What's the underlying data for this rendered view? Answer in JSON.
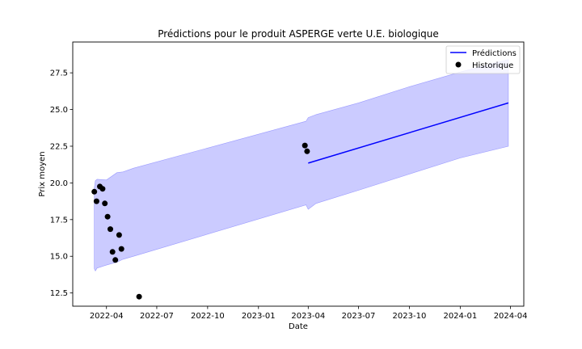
{
  "chart_data": {
    "type": "line",
    "title": "Prédictions pour le produit ASPERGE verte U.E. biologique",
    "xlabel": "Date",
    "ylabel": "Prix moyen",
    "xlim": [
      "2022-01-30",
      "2024-04-25"
    ],
    "ylim": [
      11.6,
      29.6
    ],
    "x_ticks": [
      "2022-04",
      "2022-07",
      "2022-10",
      "2023-01",
      "2023-04",
      "2023-07",
      "2023-10",
      "2024-01",
      "2024-04"
    ],
    "y_ticks": [
      12.5,
      15.0,
      17.5,
      20.0,
      22.5,
      25.0,
      27.5
    ],
    "grid": false,
    "legend_position": "top-right",
    "colors": {
      "prediction": "#0000ff",
      "band": "#c8c8ff",
      "history": "#000000"
    },
    "series": [
      {
        "name": "Prédictions",
        "kind": "line",
        "x": [
          "2023-04-01",
          "2024-03-28"
        ],
        "y": [
          21.35,
          25.45
        ]
      },
      {
        "name": "Historique",
        "kind": "scatter",
        "x": [
          "2022-03-10",
          "2022-03-14",
          "2022-03-20",
          "2022-03-25",
          "2022-03-29",
          "2022-04-03",
          "2022-04-08",
          "2022-04-12",
          "2022-04-17",
          "2022-04-24",
          "2022-04-28",
          "2022-05-30",
          "2023-03-26",
          "2023-03-30"
        ],
        "y": [
          19.4,
          18.75,
          19.75,
          19.6,
          18.6,
          17.7,
          16.85,
          15.3,
          14.75,
          16.45,
          15.5,
          12.25,
          22.55,
          22.15
        ]
      }
    ],
    "confidence_band": {
      "x": [
        "2022-03-10",
        "2022-03-12",
        "2022-03-15",
        "2022-04-01",
        "2022-04-20",
        "2022-05-01",
        "2022-05-20",
        "2023-03-28",
        "2023-04-01",
        "2023-04-15",
        "2023-07-01",
        "2023-10-01",
        "2024-01-01",
        "2024-03-28"
      ],
      "lower": [
        14.15,
        14.0,
        14.2,
        14.4,
        14.6,
        14.8,
        15.0,
        18.5,
        18.2,
        18.6,
        19.5,
        20.6,
        21.7,
        22.5
      ],
      "upper": [
        19.65,
        20.15,
        20.25,
        20.2,
        20.7,
        20.75,
        21.0,
        24.2,
        24.45,
        24.65,
        25.45,
        26.55,
        27.55,
        28.4
      ]
    },
    "legend": [
      "Prédictions",
      "Historique"
    ]
  }
}
